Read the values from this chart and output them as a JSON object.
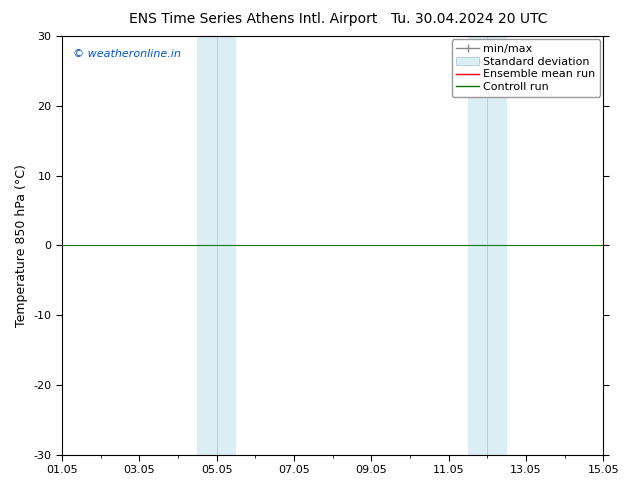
{
  "title_left": "ENS Time Series Athens Intl. Airport",
  "title_right": "Tu. 30.04.2024 20 UTC",
  "ylabel": "Temperature 850 hPa (°C)",
  "watermark": "© weatheronline.in",
  "watermark_color": "#0055cc",
  "xlim": [
    0,
    14
  ],
  "ylim": [
    -30,
    30
  ],
  "yticks": [
    -30,
    -20,
    -10,
    0,
    10,
    20,
    30
  ],
  "xtick_labels": [
    "01.05",
    "03.05",
    "05.05",
    "07.05",
    "09.05",
    "11.05",
    "13.05",
    "15.05"
  ],
  "xtick_positions": [
    0,
    2,
    4,
    6,
    8,
    10,
    12,
    14
  ],
  "shaded_bands": [
    {
      "x_start": 3.5,
      "x_end": 4.5,
      "divider": 4.0
    },
    {
      "x_start": 10.5,
      "x_end": 11.5,
      "divider": 11.0
    }
  ],
  "control_run_y": 0,
  "control_run_color": "#007700",
  "ensemble_mean_color": "#ff0000",
  "minmax_color": "#888888",
  "std_dev_fill_color": "#daeef3",
  "std_dev_edge_color": "#aaccdd",
  "background_color": "#ffffff",
  "plot_bg_color": "#ffffff",
  "legend_labels": [
    "min/max",
    "Standard deviation",
    "Ensemble mean run",
    "Controll run"
  ],
  "legend_colors": [
    "#888888",
    "#daeef3",
    "#ff0000",
    "#007700"
  ],
  "font_size_title": 10,
  "font_size_axis": 9,
  "font_size_ticks": 8,
  "font_size_legend": 8,
  "font_size_watermark": 8,
  "spine_color": "#000000",
  "tick_color": "#000000"
}
